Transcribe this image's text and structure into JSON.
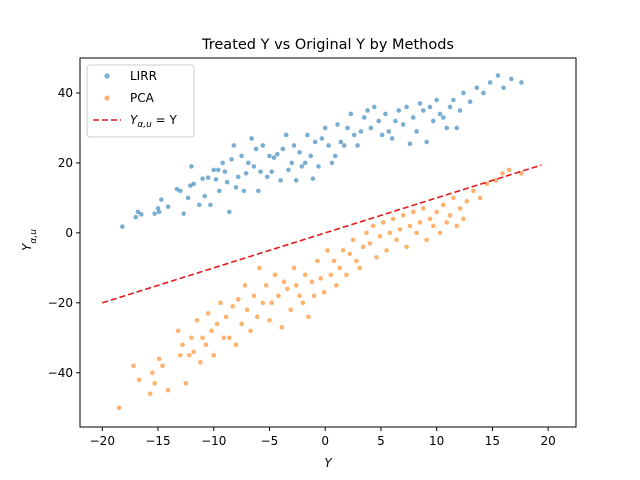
{
  "chart_data": {
    "type": "scatter",
    "title": "Treated Y vs Original Y by Methods",
    "xlabel": "Y",
    "ylabel": "Y_{α,u}",
    "xlim": [
      -22.0,
      22.5
    ],
    "ylim": [
      -55.5,
      50.0
    ],
    "xticks": [
      -20,
      -15,
      -10,
      -5,
      0,
      5,
      10,
      15,
      20
    ],
    "yticks": [
      -40,
      -20,
      0,
      20,
      40
    ],
    "grid": false,
    "legend_position": "top-left",
    "series": [
      {
        "name": "LIRR",
        "color": "#1f77b4",
        "x": [
          -18.2,
          -17,
          -16.8,
          -16.5,
          -15.3,
          -15,
          -14.9,
          -14.7,
          -14.1,
          -13.3,
          -13,
          -12.7,
          -12.3,
          -12,
          -12.1,
          -11.8,
          -11.3,
          -11,
          -10.8,
          -10.5,
          -10.3,
          -10,
          -9.8,
          -9.6,
          -9.5,
          -9.2,
          -9,
          -8.8,
          -8.6,
          -8.4,
          -8.2,
          -8,
          -7.8,
          -7.5,
          -7.3,
          -7.1,
          -6.9,
          -6.6,
          -6.4,
          -6.2,
          -6,
          -5.8,
          -5.6,
          -5.2,
          -5,
          -4.8,
          -4.6,
          -4.3,
          -4,
          -3.8,
          -3.5,
          -3.3,
          -3,
          -2.8,
          -2.6,
          -2.3,
          -2.1,
          -1.8,
          -1.6,
          -1.3,
          -1.1,
          -0.9,
          -0.6,
          -0.3,
          0,
          0.3,
          0.6,
          0.9,
          1.1,
          1.4,
          1.7,
          2,
          2.3,
          2.6,
          2.9,
          3.2,
          3.5,
          3.8,
          4.1,
          4.4,
          4.8,
          5.1,
          5.4,
          5.7,
          6,
          6.3,
          6.6,
          7,
          7.3,
          7.6,
          7.9,
          8.2,
          8.5,
          8.8,
          9.1,
          9.4,
          9.7,
          10,
          10.3,
          10.6,
          10.9,
          11.2,
          11.5,
          11.8,
          12.1,
          12.4,
          13,
          13.6,
          14.2,
          14.8,
          15.5,
          16,
          16.7,
          17.6
        ],
        "y": [
          1.8,
          4.5,
          6,
          5.3,
          5.5,
          7,
          6,
          9.5,
          7.5,
          12.5,
          12,
          5.5,
          10,
          19,
          13.5,
          14,
          8,
          15.5,
          10.5,
          15.8,
          8,
          18,
          15.3,
          18,
          12,
          20,
          17.5,
          14.5,
          6,
          21,
          25,
          13,
          16,
          22,
          12,
          17,
          20,
          27,
          19,
          24,
          12,
          17.5,
          25,
          16,
          22,
          17.5,
          21.5,
          22.5,
          15,
          24,
          28,
          18,
          20,
          25,
          15,
          23,
          19,
          20,
          28,
          22,
          15.5,
          26,
          19,
          27,
          30,
          25,
          20,
          22,
          31,
          26,
          25,
          30,
          34,
          28,
          25,
          29,
          33,
          35,
          30,
          36,
          32,
          28,
          34,
          29,
          27,
          32,
          35,
          31,
          36,
          25.5,
          33,
          29,
          37,
          35,
          26,
          36,
          32,
          38,
          34,
          33,
          30,
          36,
          38,
          30,
          35,
          40,
          37.5,
          41.5,
          40,
          43,
          45,
          41.5,
          44,
          43
        ]
      },
      {
        "name": "PCA",
        "color": "#ff7f0e",
        "x": [
          -18.5,
          -17.2,
          -16.7,
          -15.7,
          -15.5,
          -15.3,
          -14.9,
          -14.6,
          -14.1,
          -13.2,
          -13,
          -12.8,
          -12.5,
          -12.2,
          -12,
          -11.8,
          -11.5,
          -11.2,
          -11,
          -10.7,
          -10.5,
          -10.2,
          -10,
          -9.7,
          -9.4,
          -9.1,
          -8.9,
          -8.6,
          -8.3,
          -8,
          -7.8,
          -7.5,
          -7.2,
          -7,
          -6.7,
          -6.4,
          -6.1,
          -5.9,
          -5.6,
          -5.3,
          -5,
          -4.8,
          -4.5,
          -4.2,
          -3.9,
          -3.7,
          -3.4,
          -3.1,
          -2.8,
          -2.6,
          -2.3,
          -2,
          -1.8,
          -1.5,
          -1.2,
          -1,
          -0.7,
          -0.4,
          -0.1,
          0.2,
          0.5,
          0.8,
          1,
          1.3,
          1.6,
          1.9,
          2.2,
          2.5,
          2.8,
          3.1,
          3.4,
          3.7,
          4,
          4.3,
          4.6,
          4.9,
          5.2,
          5.5,
          5.8,
          6.1,
          6.4,
          6.7,
          7,
          7.3,
          7.6,
          7.9,
          8.2,
          8.5,
          8.8,
          9.1,
          9.4,
          9.7,
          10,
          10.3,
          10.6,
          10.9,
          11.2,
          11.5,
          11.8,
          12.1,
          12.4,
          12.7,
          13.3,
          13.9,
          14.5,
          15.3,
          15.9,
          16.5,
          17.6
        ],
        "y": [
          -50,
          -38,
          -42,
          -46,
          -40,
          -43,
          -36,
          -38,
          -45,
          -28,
          -35,
          -32,
          -43,
          -35,
          -30,
          -34,
          -25,
          -37,
          -30,
          -32,
          -23,
          -28,
          -35,
          -26,
          -20,
          -30,
          -24,
          -30,
          -21,
          -32,
          -19,
          -26,
          -15,
          -22,
          -28,
          -18,
          -24,
          -10,
          -20,
          -15,
          -25,
          -20,
          -12,
          -18,
          -27,
          -14,
          -16,
          -22,
          -10,
          -15,
          -18,
          -20,
          -12,
          -24,
          -14,
          -18,
          -8,
          -13,
          -17,
          -5,
          -12,
          -8,
          -15,
          -10,
          -5,
          -12,
          -6,
          -2,
          -8,
          -10,
          -4,
          0,
          -3,
          2,
          -7,
          -1,
          3,
          -5,
          0,
          4,
          -2,
          1,
          5,
          -4,
          2,
          6,
          0,
          3,
          7,
          -2,
          4,
          2,
          6,
          0,
          8,
          3,
          5,
          10,
          2,
          7,
          4,
          9,
          12,
          10,
          14,
          15,
          17,
          18,
          17
        ]
      },
      {
        "name": "Y_{α,u} = Y",
        "color": "#e31a1c",
        "style": "dashed",
        "x": [
          -20,
          19.4
        ],
        "y": [
          -20,
          19.4
        ]
      }
    ]
  }
}
